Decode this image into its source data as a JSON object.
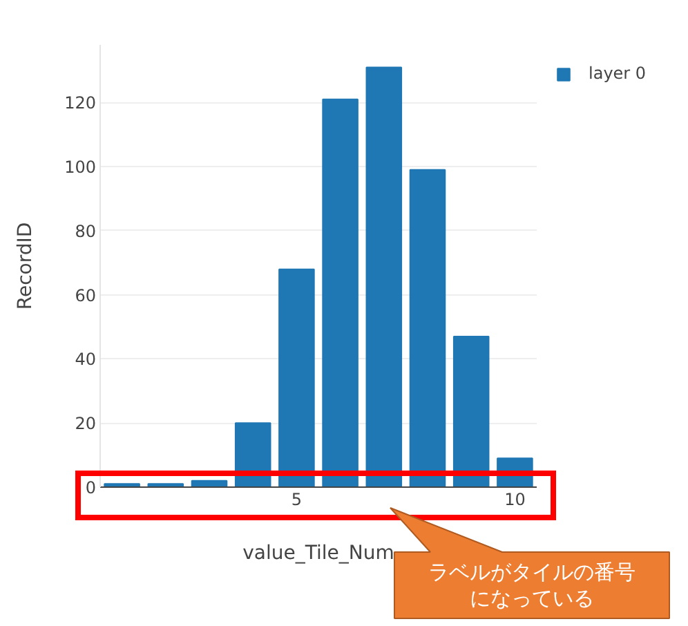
{
  "chart_data": {
    "type": "bar",
    "xlabel": "value_Tile_Num",
    "ylabel": "RecordID",
    "x": [
      1,
      2,
      3,
      4,
      5,
      6,
      7,
      8,
      9,
      10
    ],
    "series": [
      {
        "name": "layer 0",
        "color": "#1f77b4",
        "values": [
          1,
          1,
          2,
          20,
          68,
          121,
          131,
          99,
          47,
          9
        ]
      }
    ],
    "xlim": [
      0.5,
      10.5
    ],
    "xticks": [
      5,
      10
    ],
    "ylim": [
      0,
      138
    ],
    "yticks": [
      0,
      20,
      40,
      60,
      80,
      100,
      120
    ],
    "grid": "y",
    "legend": "top right",
    "annotations": [
      "ラベルがタイルの番号になっている"
    ]
  }
}
